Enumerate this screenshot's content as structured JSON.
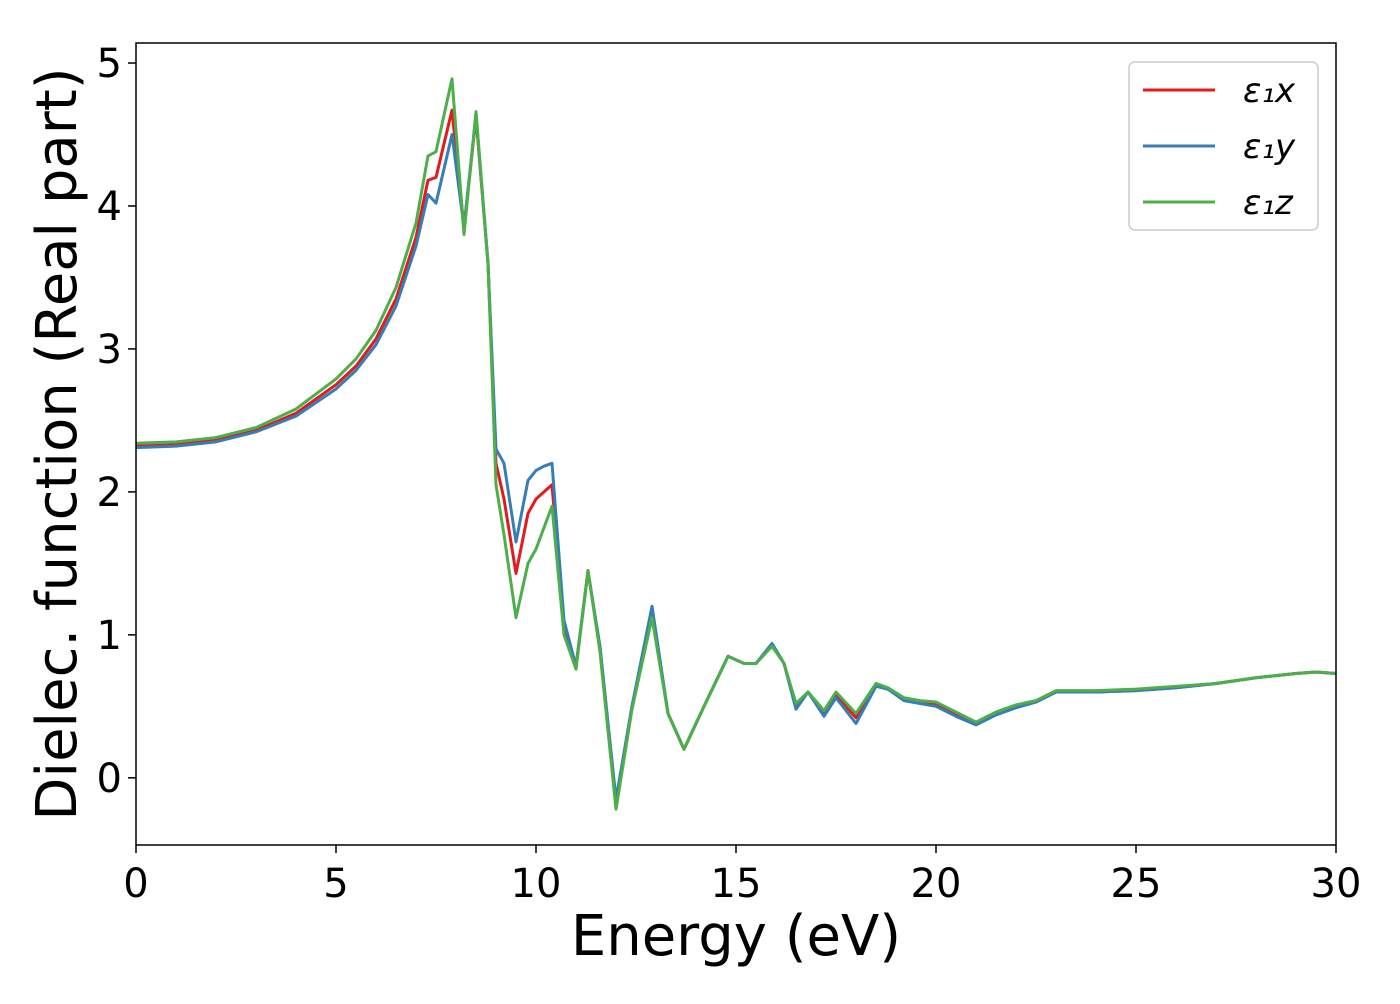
{
  "chart_data": {
    "type": "line",
    "xlabel": "Energy (eV)",
    "ylabel": "Dielec. function (Real part)",
    "x": [
      0,
      1,
      2,
      3,
      4,
      5,
      5.5,
      6,
      6.5,
      7,
      7.3,
      7.5,
      7.9,
      8.2,
      8.5,
      8.8,
      9.0,
      9.2,
      9.5,
      9.8,
      10.0,
      10.2,
      10.4,
      10.7,
      11.0,
      11.3,
      11.6,
      12.0,
      12.4,
      12.9,
      13.3,
      13.7,
      14.2,
      14.8,
      15.2,
      15.5,
      15.9,
      16.2,
      16.5,
      16.8,
      17.2,
      17.5,
      18.0,
      18.5,
      18.8,
      19.2,
      19.6,
      20.0,
      20.5,
      21.0,
      21.5,
      22.0,
      22.5,
      23.0,
      23.5,
      24,
      25,
      26,
      27,
      28,
      29,
      29.5,
      30
    ],
    "series": [
      {
        "name": "ε₁x",
        "color": "#e41a1c",
        "values": [
          2.32,
          2.33,
          2.36,
          2.43,
          2.55,
          2.75,
          2.88,
          3.07,
          3.35,
          3.78,
          4.18,
          4.2,
          4.67,
          3.85,
          4.62,
          3.6,
          2.2,
          1.95,
          1.43,
          1.85,
          1.95,
          2.0,
          2.05,
          1.05,
          0.78,
          1.45,
          0.9,
          -0.17,
          0.5,
          1.17,
          0.45,
          0.2,
          0.5,
          0.85,
          0.8,
          0.8,
          0.93,
          0.8,
          0.5,
          0.6,
          0.45,
          0.58,
          0.42,
          0.65,
          0.62,
          0.55,
          0.53,
          0.52,
          0.44,
          0.38,
          0.45,
          0.5,
          0.53,
          0.6,
          0.6,
          0.6,
          0.61,
          0.63,
          0.66,
          0.7,
          0.73,
          0.74,
          0.73
        ]
      },
      {
        "name": "ε₁y",
        "color": "#377eb8",
        "values": [
          2.31,
          2.32,
          2.35,
          2.42,
          2.53,
          2.72,
          2.85,
          3.03,
          3.3,
          3.72,
          4.08,
          4.02,
          4.5,
          3.85,
          4.64,
          3.6,
          2.3,
          2.2,
          1.65,
          2.08,
          2.15,
          2.18,
          2.2,
          1.1,
          0.78,
          1.44,
          0.92,
          -0.15,
          0.5,
          1.2,
          0.45,
          0.2,
          0.5,
          0.85,
          0.8,
          0.8,
          0.94,
          0.8,
          0.48,
          0.6,
          0.43,
          0.56,
          0.38,
          0.64,
          0.62,
          0.54,
          0.52,
          0.5,
          0.43,
          0.37,
          0.44,
          0.49,
          0.53,
          0.6,
          0.6,
          0.6,
          0.61,
          0.63,
          0.66,
          0.7,
          0.73,
          0.74,
          0.73
        ]
      },
      {
        "name": "ε₁z",
        "color": "#4daf4a",
        "values": [
          2.34,
          2.35,
          2.38,
          2.45,
          2.58,
          2.79,
          2.93,
          3.13,
          3.43,
          3.88,
          4.35,
          4.38,
          4.89,
          3.8,
          4.66,
          3.6,
          2.05,
          1.7,
          1.12,
          1.5,
          1.6,
          1.75,
          1.9,
          1.0,
          0.76,
          1.45,
          0.88,
          -0.22,
          0.48,
          1.12,
          0.45,
          0.2,
          0.5,
          0.85,
          0.8,
          0.8,
          0.92,
          0.8,
          0.52,
          0.6,
          0.47,
          0.6,
          0.45,
          0.66,
          0.63,
          0.56,
          0.54,
          0.53,
          0.46,
          0.39,
          0.46,
          0.51,
          0.54,
          0.61,
          0.61,
          0.61,
          0.62,
          0.64,
          0.66,
          0.7,
          0.73,
          0.74,
          0.73
        ]
      }
    ],
    "xlim": [
      0,
      30
    ],
    "xticks": [
      0,
      5,
      10,
      15,
      20,
      25,
      30
    ],
    "ylim": [
      -0.47,
      5.14
    ],
    "yticks": [
      0,
      1,
      2,
      3,
      4,
      5
    ],
    "legend": "upper right"
  }
}
